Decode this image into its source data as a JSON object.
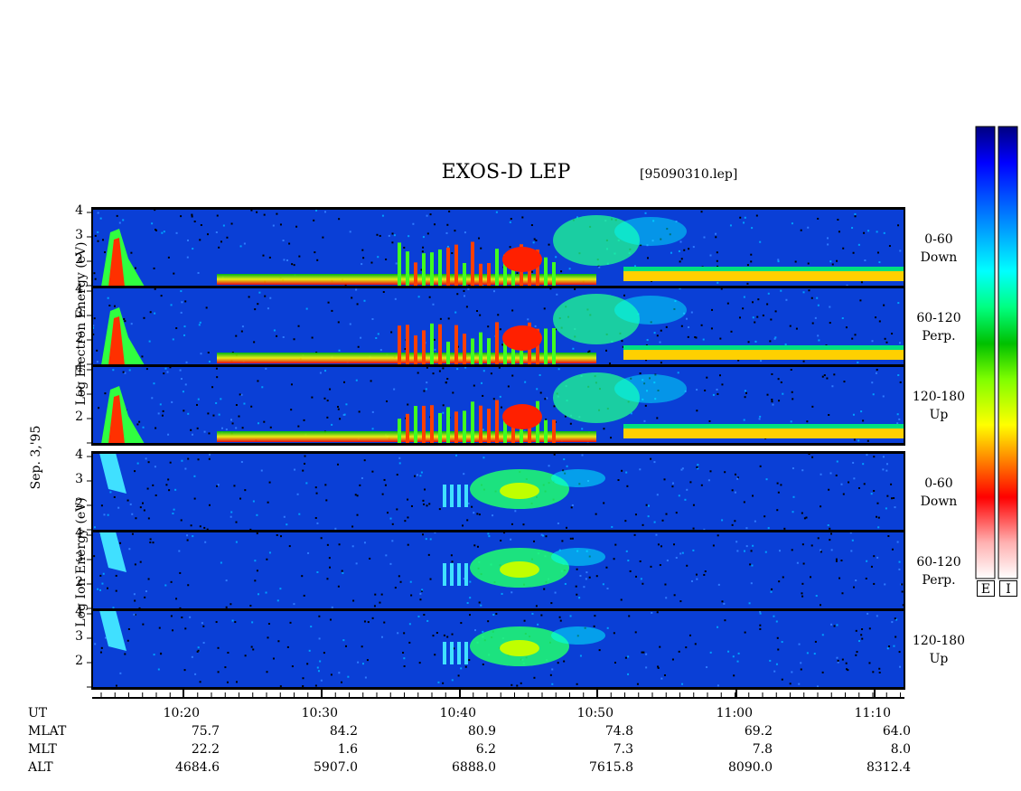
{
  "header": {
    "title": "EXOS-D LEP",
    "filename": "[95090310.lep]"
  },
  "left_labels": {
    "electron_axis": "Log   Electron   Energy (eV)",
    "ion_axis": "Log   Ion   Energy (eV)",
    "date": "Sep. 3,'95"
  },
  "panels": [
    {
      "group": "electron",
      "line1": "0-60",
      "line2": "Down"
    },
    {
      "group": "electron",
      "line1": "60-120",
      "line2": "Perp."
    },
    {
      "group": "electron",
      "line1": "120-180",
      "line2": "Up"
    },
    {
      "group": "ion",
      "line1": "0-60",
      "line2": "Down"
    },
    {
      "group": "ion",
      "line1": "60-120",
      "line2": "Perp."
    },
    {
      "group": "ion",
      "line1": "120-180",
      "line2": "Up"
    }
  ],
  "y_ticks": [
    "4",
    "3",
    "2"
  ],
  "colorbar": {
    "labels": [
      "E",
      "I"
    ],
    "colors": [
      "#ffffff",
      "#ffb0b0",
      "#ff0000",
      "#ff8000",
      "#ffff00",
      "#80ff00",
      "#00c000",
      "#00ff80",
      "#00ffff",
      "#0080ff",
      "#0000ff",
      "#000080"
    ]
  },
  "bottom_table": {
    "row_labels": [
      "UT",
      "MLAT",
      "MLT",
      "ALT"
    ],
    "columns": [
      {
        "UT": "10:20",
        "MLAT": "75.7",
        "MLT": "22.2",
        "ALT": "4684.6"
      },
      {
        "UT": "10:30",
        "MLAT": "84.2",
        "MLT": "1.6",
        "ALT": "5907.0"
      },
      {
        "UT": "10:40",
        "MLAT": "80.9",
        "MLT": "6.2",
        "ALT": "6888.0"
      },
      {
        "UT": "10:50",
        "MLAT": "74.8",
        "MLT": "7.3",
        "ALT": "7615.8"
      },
      {
        "UT": "11:00",
        "MLAT": "69.2",
        "MLT": "7.8",
        "ALT": "8090.0"
      },
      {
        "UT": "11:10",
        "MLAT": "64.0",
        "MLT": "8.0",
        "ALT": "8312.4"
      }
    ]
  },
  "chart_data": {
    "type": "heatmap",
    "title": "EXOS-D LEP",
    "subtitle": "[95090310.lep]",
    "x": [
      "10:20",
      "10:30",
      "10:40",
      "10:50",
      "11:00",
      "11:10"
    ],
    "xlabel": "UT",
    "y_ticks": [
      "2",
      "3",
      "4"
    ],
    "ylabel_electron": "Log Electron Energy (eV)",
    "ylabel_ion": "Log Ion Energy (eV)",
    "series": [
      {
        "name": "0-60 Down"
      },
      {
        "name": "60-120 Perp."
      },
      {
        "name": "120-180 Up"
      },
      {
        "name": "0-60 Down"
      },
      {
        "name": "60-120 Perp."
      },
      {
        "name": "120-180 Up"
      }
    ]
  }
}
